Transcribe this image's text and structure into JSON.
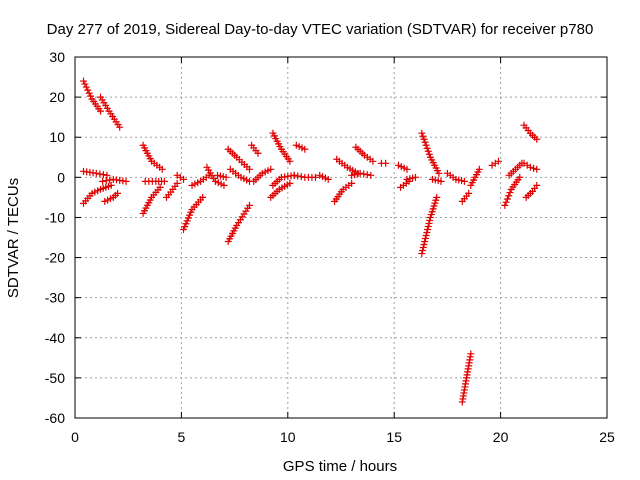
{
  "chart_data": {
    "type": "scatter",
    "title": "Day 277 of 2019, Sidereal Day-to-day VTEC variation (SDTVAR) for receiver p780",
    "xlabel": "GPS time / hours",
    "ylabel": "SDTVAR / TECUs",
    "xlim": [
      0,
      25
    ],
    "ylim": [
      -60,
      30
    ],
    "xticks": [
      0,
      5,
      10,
      15,
      20,
      25
    ],
    "yticks": [
      30,
      20,
      10,
      0,
      -10,
      -20,
      -30,
      -40,
      -50,
      -60
    ],
    "grid": true,
    "marker": "+",
    "color": "#e00000",
    "segments": [
      {
        "x": [
          0.4,
          0.8,
          1.2
        ],
        "y": [
          24,
          19.5,
          16.5
        ]
      },
      {
        "x": [
          1.2,
          1.6,
          2.1
        ],
        "y": [
          20,
          16.5,
          12.5
        ]
      },
      {
        "x": [
          0.4,
          0.8,
          1.2,
          1.7
        ],
        "y": [
          -6.5,
          -4,
          -3,
          -2
        ]
      },
      {
        "x": [
          1.4,
          1.8,
          2.0
        ],
        "y": [
          -6,
          -5,
          -4
        ]
      },
      {
        "x": [
          0.4,
          1.0,
          1.5
        ],
        "y": [
          1.5,
          1,
          0.5
        ]
      },
      {
        "x": [
          1.3,
          1.8,
          2.4
        ],
        "y": [
          -1,
          -0.5,
          -1
        ]
      },
      {
        "x": [
          3.2,
          3.6,
          4.1
        ],
        "y": [
          8,
          4,
          2
        ]
      },
      {
        "x": [
          3.2,
          3.6,
          4.0
        ],
        "y": [
          -9,
          -5,
          -2.5
        ]
      },
      {
        "x": [
          3.3,
          3.8,
          4.2
        ],
        "y": [
          -1,
          -1,
          -1
        ]
      },
      {
        "x": [
          4.3,
          4.6,
          4.8
        ],
        "y": [
          -5,
          -3,
          -1.5
        ]
      },
      {
        "x": [
          4.8,
          5.1
        ],
        "y": [
          0.5,
          -0.5
        ]
      },
      {
        "x": [
          5.1,
          5.5,
          6.0
        ],
        "y": [
          -13,
          -8,
          -5
        ]
      },
      {
        "x": [
          5.5,
          5.9,
          6.3
        ],
        "y": [
          -2,
          -1,
          0.5
        ]
      },
      {
        "x": [
          6.2,
          6.6,
          7.0
        ],
        "y": [
          2.5,
          -1,
          -2
        ]
      },
      {
        "x": [
          6.7,
          7.1
        ],
        "y": [
          0.5,
          0
        ]
      },
      {
        "x": [
          7.2,
          7.6,
          8.2
        ],
        "y": [
          7,
          5,
          2
        ]
      },
      {
        "x": [
          7.2,
          7.6,
          8.2
        ],
        "y": [
          -16,
          -12,
          -7
        ]
      },
      {
        "x": [
          7.3,
          7.8,
          8.2
        ],
        "y": [
          2,
          0,
          -1
        ]
      },
      {
        "x": [
          8.3,
          8.6
        ],
        "y": [
          8,
          6
        ]
      },
      {
        "x": [
          8.4,
          8.8,
          9.2
        ],
        "y": [
          -1,
          1,
          2
        ]
      },
      {
        "x": [
          9.3,
          9.7,
          10.1
        ],
        "y": [
          11,
          7,
          4
        ]
      },
      {
        "x": [
          9.3,
          9.7,
          10.3
        ],
        "y": [
          -2,
          0,
          0.5
        ]
      },
      {
        "x": [
          9.2,
          9.6,
          10.1
        ],
        "y": [
          -5,
          -3,
          -1.5
        ]
      },
      {
        "x": [
          10.3,
          10.8,
          11.3
        ],
        "y": [
          0.5,
          0,
          0
        ]
      },
      {
        "x": [
          10.4,
          10.8
        ],
        "y": [
          8,
          7
        ]
      },
      {
        "x": [
          11.5,
          11.9
        ],
        "y": [
          0.5,
          -0.5
        ]
      },
      {
        "x": [
          12.3,
          12.8,
          13.3
        ],
        "y": [
          4.5,
          2.5,
          1
        ]
      },
      {
        "x": [
          12.2,
          12.6,
          13.0
        ],
        "y": [
          -6,
          -3,
          -1.5
        ]
      },
      {
        "x": [
          13.0,
          13.4,
          13.9
        ],
        "y": [
          0.5,
          1,
          0.5
        ]
      },
      {
        "x": [
          13.2,
          13.6,
          14.0
        ],
        "y": [
          7.5,
          5.5,
          4
        ]
      },
      {
        "x": [
          14.4,
          14.6
        ],
        "y": [
          3.5,
          3.5
        ]
      },
      {
        "x": [
          15.2,
          15.6
        ],
        "y": [
          3,
          2
        ]
      },
      {
        "x": [
          15.3,
          15.7
        ],
        "y": [
          -2.5,
          -1
        ]
      },
      {
        "x": [
          15.6,
          16.0
        ],
        "y": [
          -0.5,
          0
        ]
      },
      {
        "x": [
          16.3,
          16.7,
          17.1
        ],
        "y": [
          11,
          5,
          1
        ]
      },
      {
        "x": [
          16.3,
          16.7,
          17.0
        ],
        "y": [
          -19,
          -10,
          -5
        ]
      },
      {
        "x": [
          16.8,
          17.2
        ],
        "y": [
          -0.5,
          -1
        ]
      },
      {
        "x": [
          17.5,
          17.9,
          18.3
        ],
        "y": [
          1,
          -0.5,
          -1
        ]
      },
      {
        "x": [
          18.2,
          18.4,
          18.6
        ],
        "y": [
          -56,
          -50,
          -44
        ]
      },
      {
        "x": [
          18.2,
          18.5
        ],
        "y": [
          -6,
          -4
        ]
      },
      {
        "x": [
          18.6,
          19.0
        ],
        "y": [
          -2,
          2
        ]
      },
      {
        "x": [
          19.6,
          19.9
        ],
        "y": [
          3,
          4
        ]
      },
      {
        "x": [
          20.2,
          20.5,
          20.9
        ],
        "y": [
          -7,
          -3,
          0
        ]
      },
      {
        "x": [
          20.4,
          20.8,
          21.0
        ],
        "y": [
          0.5,
          2.5,
          3.5
        ]
      },
      {
        "x": [
          21.1,
          21.4,
          21.7
        ],
        "y": [
          13,
          11,
          9.5
        ]
      },
      {
        "x": [
          21.1,
          21.4,
          21.7
        ],
        "y": [
          3.5,
          2.5,
          2
        ]
      },
      {
        "x": [
          21.2,
          21.5,
          21.7
        ],
        "y": [
          -5,
          -3.5,
          -2
        ]
      }
    ]
  }
}
